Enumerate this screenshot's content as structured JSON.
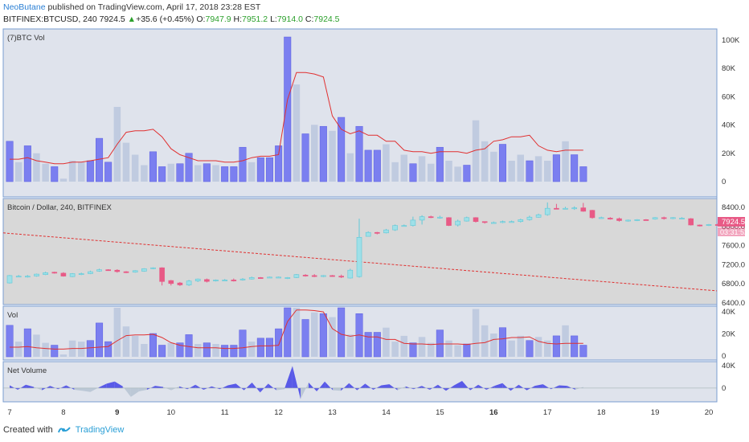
{
  "header": {
    "author": "NeoButane",
    "published": "published on TradingView.com, April 17, 2018 23:28 EST",
    "symbol": "BITFINEX:BTCUSD, 240",
    "last": "7924.5",
    "change": "+35.6 (+0.45%)",
    "o_label": "O:",
    "o": "7947.9",
    "h_label": "H:",
    "h": "7951.2",
    "l_label": "L:",
    "l": "7914.0",
    "c_label": "C:",
    "c": "7924.5"
  },
  "footer": {
    "created": "Created with",
    "brand": "TradingView"
  },
  "colors": {
    "up_candle": "#9fe0e8",
    "down_candle": "#e85a86",
    "vol_up": "#c0cbe0",
    "vol_down": "#7b7ff0",
    "ma": "#e03030",
    "trendline": "#e03030",
    "panel_bg": "#dfe3ec",
    "price_bg": "#d8d8d8",
    "price_label": "#e85a86",
    "net_pos": "#4a4ae8",
    "net_neg": "#b8c4d4"
  },
  "chart_data": [
    {
      "type": "bar",
      "title": "(7)BTC Vol",
      "y_ticks": [
        "100K",
        "80K",
        "60K",
        "40K",
        "20K",
        "0"
      ],
      "ylim": [
        0,
        100000
      ],
      "values": [
        27000,
        13000,
        24000,
        19000,
        12000,
        10000,
        2000,
        14000,
        13000,
        14000,
        29000,
        13000,
        50000,
        26000,
        18000,
        11000,
        20000,
        10000,
        12000,
        12000,
        19000,
        11000,
        12000,
        11000,
        10000,
        10000,
        23000,
        13000,
        16000,
        16000,
        24000,
        102000,
        65000,
        32000,
        38000,
        37000,
        34000,
        43000,
        19000,
        37000,
        21000,
        21000,
        25000,
        13000,
        18000,
        12000,
        17000,
        12000,
        23000,
        14000,
        10000,
        11000,
        41000,
        27000,
        20000,
        25000,
        14000,
        18000,
        14000,
        17000,
        14000,
        18000,
        27000,
        18000,
        10000
      ],
      "directions": [
        0,
        1,
        0,
        1,
        1,
        0,
        1,
        1,
        1,
        0,
        0,
        0,
        1,
        1,
        1,
        1,
        0,
        0,
        1,
        0,
        0,
        1,
        0,
        1,
        0,
        0,
        0,
        1,
        0,
        0,
        0,
        0,
        1,
        0,
        1,
        0,
        1,
        0,
        1,
        0,
        0,
        0,
        1,
        1,
        1,
        0,
        1,
        1,
        0,
        1,
        1,
        0,
        1,
        1,
        1,
        0,
        1,
        1,
        0,
        1,
        1,
        0,
        1,
        0,
        0
      ],
      "ma": [
        15000,
        15000,
        16000,
        14000,
        13000,
        12000,
        12000,
        13000,
        13000,
        14000,
        15000,
        16000,
        25000,
        33000,
        34000,
        34000,
        35000,
        30000,
        22000,
        18000,
        16000,
        14000,
        14000,
        14000,
        13000,
        13000,
        14000,
        16000,
        17000,
        17000,
        18000,
        55000,
        73000,
        73000,
        72000,
        70000,
        44000,
        35000,
        32000,
        34000,
        31000,
        31000,
        27000,
        27000,
        21000,
        20000,
        20000,
        19000,
        20000,
        20000,
        20000,
        19000,
        21000,
        22000,
        27000,
        28000,
        30000,
        30000,
        31000,
        24000,
        21000,
        20000,
        21000,
        21000,
        21000
      ]
    },
    {
      "type": "candlestick",
      "title": "Bitcoin / Dollar, 240, BITFINEX",
      "y_ticks": [
        "8400.0",
        "8000.0",
        "7600.0",
        "7200.0",
        "6800.0",
        "6400.0"
      ],
      "ylim": [
        6330,
        8490
      ],
      "last_price_label": "7924.5",
      "countdown_label": "03:31:52",
      "trendline": [
        {
          "x": 0,
          "price": 7790
        },
        {
          "x": 1,
          "price": 6610
        }
      ],
      "candles": [
        [
          6770,
          6920,
          6760,
          6930
        ],
        [
          6900,
          6910,
          6890,
          6930
        ],
        [
          6900,
          6910,
          6880,
          6930
        ],
        [
          6910,
          6950,
          6900,
          6960
        ],
        [
          6940,
          6980,
          6930,
          7000
        ],
        [
          6990,
          6980,
          6960,
          7000
        ],
        [
          6970,
          6910,
          6900,
          6990
        ],
        [
          6900,
          6960,
          6890,
          6970
        ],
        [
          6960,
          6960,
          6930,
          6980
        ],
        [
          6960,
          7000,
          6950,
          7020
        ],
        [
          7010,
          7040,
          7000,
          7060
        ],
        [
          7040,
          7030,
          7020,
          7050
        ],
        [
          7030,
          7000,
          6980,
          7050
        ],
        [
          7000,
          6980,
          6970,
          7010
        ],
        [
          6990,
          7020,
          6980,
          7030
        ],
        [
          7010,
          7060,
          7000,
          7070
        ],
        [
          7070,
          7080,
          7050,
          7090
        ],
        [
          7080,
          6800,
          6720,
          7090
        ],
        [
          6820,
          6760,
          6720,
          6830
        ],
        [
          6770,
          6730,
          6710,
          6790
        ],
        [
          6730,
          6810,
          6710,
          6830
        ],
        [
          6810,
          6850,
          6790,
          6860
        ],
        [
          6840,
          6800,
          6780,
          6860
        ],
        [
          6810,
          6830,
          6800,
          6840
        ],
        [
          6830,
          6830,
          6820,
          6850
        ],
        [
          6830,
          6820,
          6800,
          6860
        ],
        [
          6830,
          6850,
          6820,
          6870
        ],
        [
          6850,
          6880,
          6840,
          6900
        ],
        [
          6880,
          6870,
          6860,
          6890
        ],
        [
          6880,
          6890,
          6870,
          6900
        ],
        [
          6890,
          6890,
          6870,
          6900
        ],
        [
          6870,
          6880,
          6850,
          6890
        ],
        [
          6880,
          6940,
          6870,
          6950
        ],
        [
          6930,
          6920,
          6900,
          6950
        ],
        [
          6920,
          6900,
          6890,
          6950
        ],
        [
          6900,
          6920,
          6890,
          6930
        ],
        [
          6920,
          6910,
          6900,
          6930
        ],
        [
          6910,
          6890,
          6870,
          6940
        ],
        [
          6870,
          7030,
          6860,
          7060
        ],
        [
          6900,
          7700,
          6880,
          8080
        ],
        [
          7720,
          7800,
          7720,
          7820
        ],
        [
          7800,
          7780,
          7760,
          7810
        ],
        [
          7790,
          7850,
          7780,
          7870
        ],
        [
          7850,
          7940,
          7830,
          7960
        ],
        [
          7940,
          7940,
          7920,
          7960
        ],
        [
          7940,
          8050,
          7920,
          8120
        ],
        [
          8050,
          8120,
          7960,
          8150
        ],
        [
          8120,
          8110,
          8090,
          8140
        ],
        [
          8110,
          8110,
          8080,
          8140
        ],
        [
          8100,
          7940,
          7930,
          8110
        ],
        [
          7950,
          8030,
          7920,
          8060
        ],
        [
          8030,
          8100,
          8020,
          8120
        ],
        [
          8100,
          8020,
          8000,
          8110
        ],
        [
          8020,
          8000,
          7980,
          8020
        ],
        [
          8000,
          8000,
          7990,
          8020
        ],
        [
          8000,
          8020,
          7990,
          8040
        ],
        [
          8020,
          8020,
          8010,
          8040
        ],
        [
          8020,
          8060,
          8000,
          8080
        ],
        [
          8060,
          8110,
          8040,
          8140
        ],
        [
          8110,
          8160,
          8100,
          8180
        ],
        [
          8160,
          8290,
          8140,
          8410
        ],
        [
          8290,
          8280,
          8270,
          8380
        ],
        [
          8290,
          8290,
          8270,
          8320
        ],
        [
          8280,
          8300,
          8260,
          8330
        ],
        [
          8300,
          8230,
          8220,
          8400
        ],
        [
          8250,
          8100,
          8080,
          8260
        ],
        [
          8100,
          8100,
          8080,
          8120
        ],
        [
          8090,
          8080,
          8060,
          8110
        ],
        [
          8080,
          8040,
          8020,
          8100
        ],
        [
          8030,
          8050,
          8020,
          8060
        ],
        [
          8040,
          8060,
          8030,
          8070
        ],
        [
          8060,
          8050,
          8040,
          8070
        ],
        [
          8070,
          8100,
          8060,
          8110
        ],
        [
          8100,
          8080,
          8060,
          8120
        ],
        [
          8090,
          8100,
          8070,
          8110
        ],
        [
          8090,
          8090,
          8070,
          8110
        ],
        [
          8080,
          7950,
          7940,
          8090
        ],
        [
          7950,
          7940,
          7920,
          7960
        ],
        [
          7940,
          7960,
          7930,
          7970
        ],
        [
          7960,
          7950,
          7930,
          7980
        ],
        [
          7948,
          7925,
          7914,
          7951
        ]
      ]
    },
    {
      "type": "bar",
      "title": "Vol",
      "y_ticks": [
        "40K",
        "20K",
        "0"
      ],
      "ylim": [
        0,
        42000
      ],
      "note": "same volume series as (7)BTC Vol panel with its moving average"
    },
    {
      "type": "area",
      "title": "Net Volume",
      "y_ticks": [
        "40K",
        "0"
      ],
      "ylim": [
        -22000,
        45000
      ],
      "values": [
        5000,
        -3000,
        6000,
        2000,
        -4000,
        4000,
        -2000,
        5000,
        -3000,
        -5000,
        -7000,
        1000,
        8000,
        12000,
        3000,
        -16000,
        -6000,
        -3000,
        4000,
        2000,
        -4000,
        3000,
        -2000,
        6000,
        -3000,
        3000,
        -2000,
        5000,
        8000,
        -4000,
        10000,
        -8000,
        8000,
        -4000,
        -2000,
        40000,
        -20000,
        10000,
        -6000,
        12000,
        -4000,
        -5000,
        9000,
        -4000,
        8000,
        -3000,
        5000,
        7000,
        -4000,
        3000,
        -2000,
        4000,
        -3000,
        6000,
        -5000,
        5000,
        13000,
        -4000,
        6000,
        -3000,
        4000,
        9000,
        -5000,
        6000,
        -4000,
        4000,
        7000,
        -2000,
        5000,
        4000,
        -3000,
        2000
      ],
      "x_tick_labels": [
        "7",
        "8",
        "9",
        "10",
        "11",
        "12",
        "13",
        "14",
        "15",
        "16",
        "17",
        "18",
        "19",
        "20"
      ],
      "bold_ticks": [
        "9",
        "16"
      ]
    }
  ]
}
